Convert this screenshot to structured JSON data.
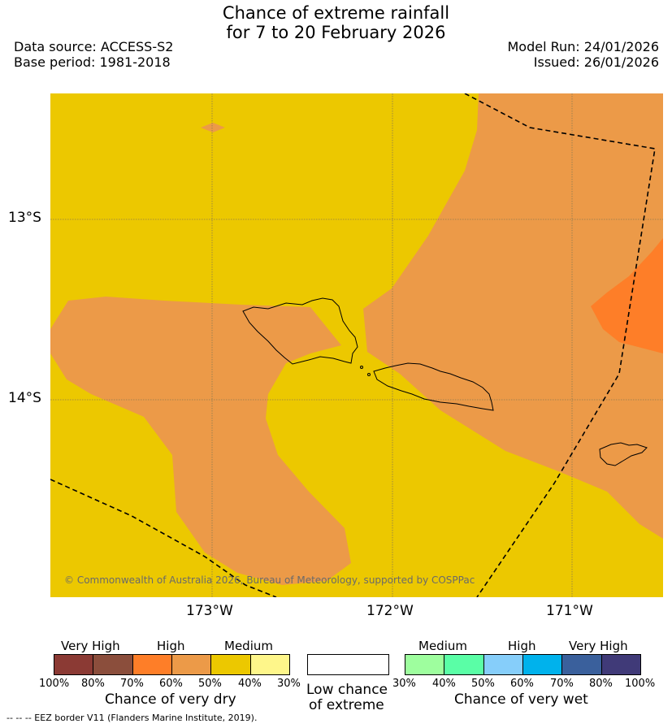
{
  "title_line1": "Chance of extreme rainfall",
  "title_line2": "for 7 to 20 February 2026",
  "data_source": "Data source: ACCESS-S2",
  "base_period": "Base period: 1981-2018",
  "model_run": "Model Run: 24/01/2026",
  "issued": "Issued: 26/01/2026",
  "lat_labels": [
    "13°S",
    "14°S"
  ],
  "lon_labels": [
    "173°W",
    "172°W",
    "171°W"
  ],
  "copyright": "© Commonwealth of Australia 2026, Bureau of Meteorology, supported by COSPPac",
  "colors": {
    "medium_dry": "#ecc800",
    "high_dry": "#ec9a48",
    "high_dry_strong": "#fe7e28",
    "eez": "#000000"
  },
  "legend": {
    "dry": {
      "groups": [
        "Very High",
        "High",
        "Medium"
      ],
      "colors": [
        "#8b3a34",
        "#8b4e3c",
        "#fe7e28",
        "#ec9a48",
        "#ecc800",
        "#fef68a"
      ],
      "ticks": [
        "100%",
        "80%",
        "70%",
        "60%",
        "50%",
        "40%",
        "30%"
      ],
      "caption": "Chance of very dry"
    },
    "low": {
      "color": "#ffffff",
      "caption_line1": "Low chance",
      "caption_line2": "of extreme"
    },
    "wet": {
      "groups": [
        "Medium",
        "High",
        "Very High"
      ],
      "colors": [
        "#9efe9e",
        "#5afea6",
        "#86cefa",
        "#00b2ec",
        "#3a609c",
        "#403a78"
      ],
      "ticks": [
        "30%",
        "40%",
        "50%",
        "60%",
        "70%",
        "80%",
        "100%"
      ],
      "caption": "Chance of very wet"
    }
  },
  "footnote": "-- -- -- EEZ border V11 (Flanders Marine Institute, 2019)."
}
